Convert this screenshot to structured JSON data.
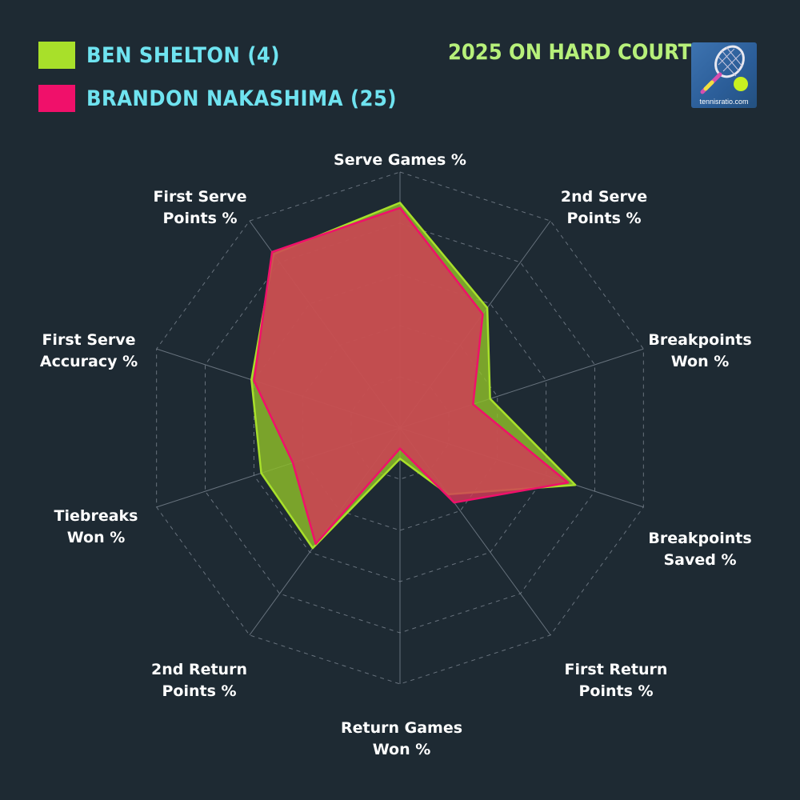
{
  "title": "2025 ON HARD COURTS",
  "logo": {
    "caption": "tennisratio.com",
    "icon": "tennis-racket-ball-icon"
  },
  "colors": {
    "background": "#1e2a33",
    "legend_text": "#6fe3f0",
    "title_text": "#b7f07a",
    "grid": "#7a8590"
  },
  "chart_data": {
    "type": "radar",
    "axes": [
      [
        "Serve Games %"
      ],
      [
        "2nd Serve",
        "Points %"
      ],
      [
        "Breakpoints",
        "Won %"
      ],
      [
        "Breakpoints",
        "Saved %"
      ],
      [
        "First Return",
        "Points %"
      ],
      [
        "Return Games",
        "Won %"
      ],
      [
        "2nd Return",
        "Points %"
      ],
      [
        "Tiebreaks",
        "Won %"
      ],
      [
        "First Serve",
        "Accuracy %"
      ],
      [
        "First Serve",
        "Points %"
      ]
    ],
    "range": [
      0,
      100
    ],
    "grid_levels": 5,
    "grid": true,
    "legend_position": "top-left",
    "series": [
      {
        "name": "BEN SHELTON (4)",
        "color": "#a8e02a",
        "fill": "#8fbe2a",
        "values": [
          88,
          58,
          37,
          72,
          32,
          12,
          58,
          57,
          61,
          84
        ]
      },
      {
        "name": "BRANDON NAKASHIMA (25)",
        "color": "#f0106a",
        "fill": "#d23a58",
        "values": [
          86,
          55,
          30,
          69,
          36,
          8,
          56,
          44,
          60,
          85
        ]
      }
    ]
  }
}
